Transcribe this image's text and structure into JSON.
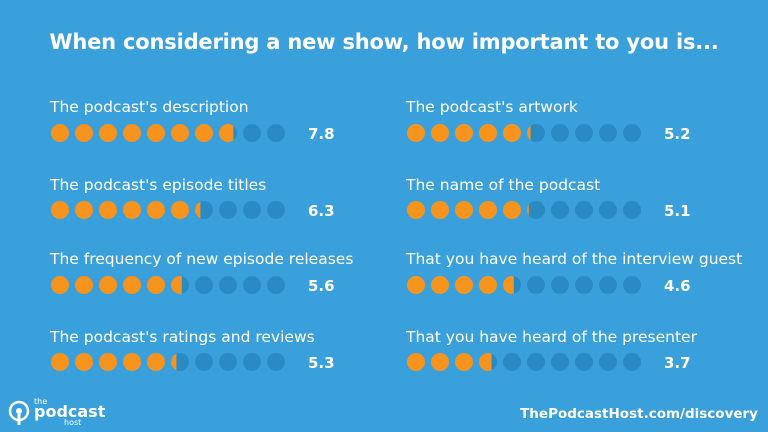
{
  "title": "When considering a new show, how important to you is...",
  "chart_data": {
    "type": "dot-rating",
    "max": 10,
    "items": [
      {
        "label": "The podcast's description",
        "value": 7.8,
        "display": "7.8"
      },
      {
        "label": "The podcast's episode titles",
        "value": 6.3,
        "display": "6.3"
      },
      {
        "label": "The frequency of new episode releases",
        "value": 5.6,
        "display": "5.6"
      },
      {
        "label": "The podcast's ratings and reviews",
        "value": 5.3,
        "display": "5.3"
      },
      {
        "label": "The podcast's artwork",
        "value": 5.2,
        "display": "5.2"
      },
      {
        "label": "The name of the podcast",
        "value": 5.1,
        "display": "5.1"
      },
      {
        "label": "That you have heard of the interview guest",
        "value": 4.6,
        "display": "4.6"
      },
      {
        "label": "That you have heard of the presenter",
        "value": 3.7,
        "display": "3.7"
      }
    ],
    "colors": {
      "filled": "#f7941d",
      "empty": "#2a8ac4",
      "background": "#3aa0dc"
    }
  },
  "logo": {
    "small_top": "the",
    "name": "podcast",
    "small_bottom": "host"
  },
  "source": "ThePodcastHost.com/discovery"
}
